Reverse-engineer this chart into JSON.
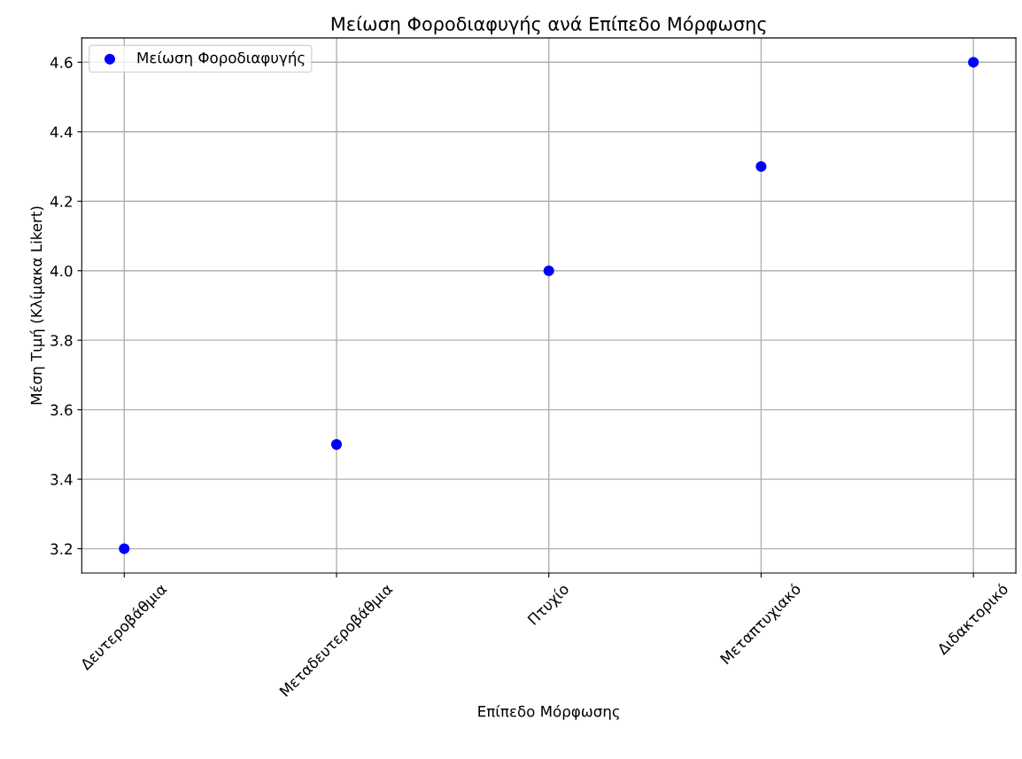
{
  "chart_data": {
    "type": "scatter",
    "title": "Μείωση Φοροδιαφυγής ανά Επίπεδο Μόρφωσης",
    "xlabel": "Επίπεδο Μόρφωσης",
    "ylabel": "Μέση Τιμή (Κλίμακα Likert)",
    "categories": [
      "Δευτεροβάθμια",
      "Μεταδευτεροβάθμια",
      "Πτυχίο",
      "Μεταπτυχιακό",
      "Διδακτορικό"
    ],
    "series": [
      {
        "name": "Μείωση Φοροδιαφυγής",
        "color": "#0000ff",
        "values": [
          3.2,
          3.5,
          4.0,
          4.3,
          4.6
        ]
      }
    ],
    "ylim": [
      3.13,
      4.67
    ],
    "yticks": [
      {
        "value": 3.2,
        "label": "3.2"
      },
      {
        "value": 3.4,
        "label": "3.4"
      },
      {
        "value": 3.6,
        "label": "3.6"
      },
      {
        "value": 3.8,
        "label": "3.8"
      },
      {
        "value": 4.0,
        "label": "4.0"
      },
      {
        "value": 4.2,
        "label": "4.2"
      },
      {
        "value": 4.4,
        "label": "4.4"
      },
      {
        "value": 4.6,
        "label": "4.6"
      }
    ],
    "grid": true,
    "legend": "top left",
    "marker": "circle"
  }
}
